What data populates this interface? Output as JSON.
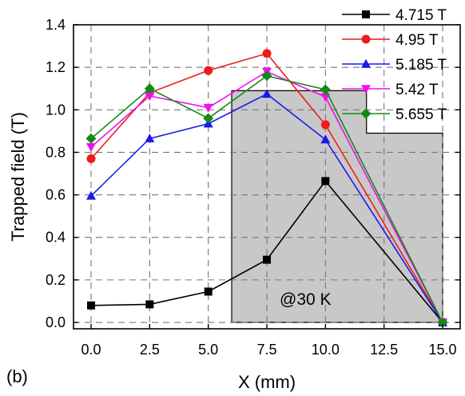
{
  "panel_label": "(b)",
  "chart_data": {
    "type": "line",
    "title": "",
    "xlabel": "X (mm)",
    "ylabel": "Trapped field (T)",
    "xlim": [
      -0.75,
      15.75
    ],
    "ylim": [
      -0.03,
      1.4
    ],
    "x_ticks": [
      0.0,
      2.5,
      5.0,
      7.5,
      10.0,
      12.5,
      15.0
    ],
    "x_tick_labels": [
      "0.0",
      "2.5",
      "5.0",
      "7.5",
      "10.0",
      "12.5",
      "15.0"
    ],
    "y_ticks": [
      0.0,
      0.2,
      0.4,
      0.6,
      0.8,
      1.0,
      1.2,
      1.4
    ],
    "y_tick_labels": [
      "0.0",
      "0.2",
      "0.4",
      "0.6",
      "0.8",
      "1.0",
      "1.2",
      "1.4"
    ],
    "grid": true,
    "legend_position": "top-right",
    "x": [
      0.0,
      2.5,
      5.0,
      7.5,
      10.0,
      15.0
    ],
    "series": [
      {
        "name": "4.715 T",
        "color": "#000000",
        "marker": "square",
        "values": [
          0.08,
          0.085,
          0.145,
          0.295,
          0.665,
          0.0
        ]
      },
      {
        "name": "4.95 T",
        "color": "#ee1c1c",
        "marker": "circle",
        "values": [
          0.77,
          1.08,
          1.185,
          1.265,
          0.93,
          0.0
        ]
      },
      {
        "name": "5.185 T",
        "color": "#1a1aee",
        "marker": "triangle-up",
        "values": [
          0.595,
          0.865,
          0.935,
          1.075,
          0.86,
          0.0
        ]
      },
      {
        "name": "5.42 T",
        "color": "#ee11ee",
        "marker": "triangle-down",
        "values": [
          0.825,
          1.065,
          1.01,
          1.18,
          1.06,
          0.0
        ]
      },
      {
        "name": "5.655 T",
        "color": "#138a13",
        "marker": "diamond",
        "values": [
          0.865,
          1.1,
          0.96,
          1.16,
          1.095,
          0.0
        ]
      }
    ],
    "shaded_region": {
      "color": "#c8c8c8",
      "outline": [
        [
          6.0,
          0.0
        ],
        [
          6.0,
          1.09
        ],
        [
          11.75,
          1.09
        ],
        [
          11.75,
          0.89
        ],
        [
          15.0,
          0.89
        ],
        [
          15.0,
          0.0
        ]
      ]
    },
    "annotation": "@30 K"
  }
}
